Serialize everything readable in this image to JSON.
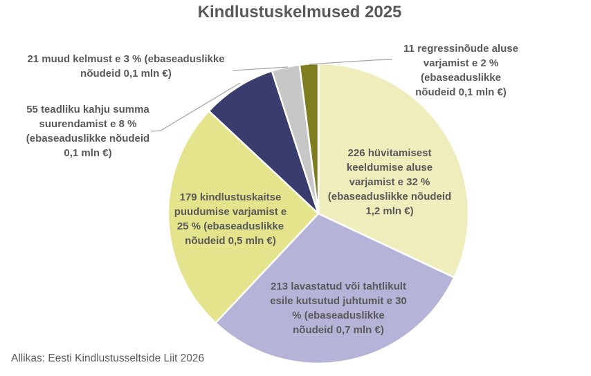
{
  "chart_data": {
    "type": "pie",
    "title": "Kindlustuskelmused 2025",
    "source": "Allikas: Eesti Kindlustusseltside Liit 2026",
    "direction": "clockwise",
    "start_angle_deg": 0,
    "slices": [
      {
        "count": 226,
        "percent": 32,
        "illegal_claims_mln_eur": "1,2",
        "color": "#EEEDBB",
        "label_placement": "inside",
        "label": "226 hüvitamisest\nkeeldumise aluse\nvarjamist e 32 %\n(ebaseaduslikke nõudeid\n1,2 mln €)"
      },
      {
        "count": 213,
        "percent": 30,
        "illegal_claims_mln_eur": "0,7",
        "color": "#B5B4D8",
        "label_placement": "inside",
        "label": "213 lavastatud või tahtlikult\nesile kutsutud juhtumit e 30\n% (ebaseaduslikke\nnõudeid 0,7 mln €)"
      },
      {
        "count": 179,
        "percent": 25,
        "illegal_claims_mln_eur": "0,5",
        "color": "#E4E48D",
        "label_placement": "inside",
        "label": "179 kindlustuskaitse\npuudumise varjamist e\n25 % (ebaseaduslikke\nnõudeid 0,5 mln €)"
      },
      {
        "count": 55,
        "percent": 8,
        "illegal_claims_mln_eur": "0,1",
        "color": "#3A3C6E",
        "label_placement": "outside-left",
        "label": "55 teadliku kahju summa\nsuurendamist e 8 %\n(ebaseaduslikke nõudeid\n0,1 mln €)"
      },
      {
        "count": 21,
        "percent": 3,
        "illegal_claims_mln_eur": "0,1",
        "color": "#C7C7C7",
        "label_placement": "outside-top-left",
        "label": "21 muud kelmust e 3 % (ebaseaduslikke\nnõudeid 0,1 mln €)"
      },
      {
        "count": 11,
        "percent": 2,
        "illegal_claims_mln_eur": "0,1",
        "color": "#7E7D20",
        "label_placement": "outside-top-right",
        "label": "11 regressinõude aluse\nvarjamist e 2 %\n(ebaseaduslikke\nnõudeid 0,1 mln €)"
      }
    ],
    "colors": {
      "text": "#595959",
      "leader_line": "#A6A6A6",
      "slice_border": "#FFFFFF"
    }
  }
}
